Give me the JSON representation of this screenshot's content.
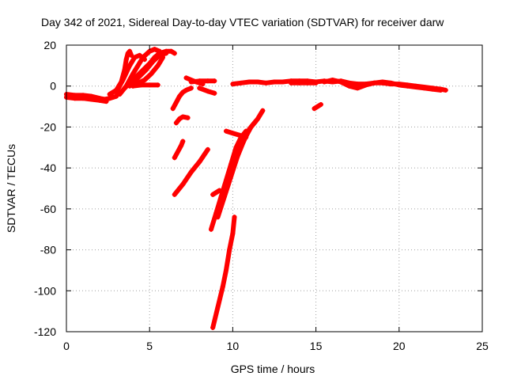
{
  "chart_data": {
    "type": "scatter",
    "title": "Day 342 of 2021, Sidereal Day-to-day VTEC variation (SDTVAR) for receiver darw",
    "xlabel": "GPS time / hours",
    "ylabel": "SDTVAR / TECUs",
    "xlim": [
      0,
      25
    ],
    "ylim": [
      -120,
      20
    ],
    "xticks": [
      "0",
      "5",
      "10",
      "15",
      "20",
      "25"
    ],
    "yticks": [
      "20",
      "0",
      "-20",
      "-40",
      "-60",
      "-80",
      "-100",
      "-120"
    ],
    "grid": true,
    "marker": "plus",
    "color": "#ff0000",
    "series": [
      {
        "points": [
          [
            0.0,
            -4
          ],
          [
            0.5,
            -4.5
          ],
          [
            1.0,
            -4.5
          ],
          [
            1.5,
            -5
          ],
          [
            2.0,
            -6
          ],
          [
            2.3,
            -6.5
          ],
          [
            2.6,
            -6
          ],
          [
            3.0,
            -5
          ]
        ]
      },
      {
        "points": [
          [
            0.0,
            -5.5
          ],
          [
            0.5,
            -6
          ],
          [
            1.0,
            -6
          ],
          [
            1.5,
            -6.5
          ],
          [
            2.0,
            -7
          ],
          [
            2.4,
            -7.5
          ]
        ]
      },
      {
        "points": [
          [
            2.6,
            -4
          ],
          [
            3.0,
            -2
          ],
          [
            3.3,
            2
          ],
          [
            3.5,
            8
          ],
          [
            3.6,
            13
          ],
          [
            3.7,
            16
          ],
          [
            3.8,
            17
          ],
          [
            3.9,
            15
          ]
        ]
      },
      {
        "points": [
          [
            3.0,
            -3
          ],
          [
            3.4,
            3
          ],
          [
            3.8,
            10
          ],
          [
            4.1,
            14
          ],
          [
            4.4,
            15
          ],
          [
            4.7,
            13
          ]
        ]
      },
      {
        "points": [
          [
            3.2,
            -4
          ],
          [
            3.6,
            0
          ],
          [
            4.0,
            6
          ],
          [
            4.3,
            10
          ],
          [
            4.6,
            14
          ],
          [
            5.0,
            17
          ],
          [
            5.3,
            18
          ],
          [
            5.6,
            17
          ]
        ]
      },
      {
        "points": [
          [
            3.5,
            -1
          ],
          [
            4.0,
            3
          ],
          [
            4.5,
            7
          ],
          [
            5.0,
            11
          ],
          [
            5.3,
            14
          ],
          [
            5.6,
            16
          ],
          [
            6.0,
            17
          ],
          [
            6.3,
            17
          ],
          [
            6.5,
            16
          ]
        ]
      },
      {
        "points": [
          [
            3.8,
            0
          ],
          [
            4.3,
            4
          ],
          [
            4.8,
            8
          ],
          [
            5.2,
            12
          ],
          [
            5.6,
            15
          ],
          [
            6.0,
            16
          ]
        ]
      },
      {
        "points": [
          [
            4.2,
            1
          ],
          [
            4.7,
            3
          ],
          [
            5.1,
            6
          ],
          [
            5.5,
            10
          ],
          [
            5.8,
            14
          ]
        ]
      },
      {
        "points": [
          [
            4.0,
            0
          ],
          [
            4.5,
            0.5
          ],
          [
            5.0,
            0.5
          ],
          [
            5.5,
            0.5
          ]
        ]
      },
      {
        "points": [
          [
            6.4,
            -11
          ],
          [
            6.6,
            -8
          ],
          [
            6.8,
            -5
          ],
          [
            7.0,
            -3
          ],
          [
            7.2,
            -2
          ],
          [
            7.5,
            -1
          ]
        ]
      },
      {
        "points": [
          [
            7.2,
            4
          ],
          [
            7.5,
            3
          ],
          [
            7.8,
            2
          ],
          [
            8.2,
            1
          ]
        ]
      },
      {
        "points": [
          [
            7.5,
            2
          ],
          [
            8.0,
            2.5
          ],
          [
            8.5,
            2.5
          ],
          [
            8.9,
            2.5
          ]
        ]
      },
      {
        "points": [
          [
            8.0,
            -1
          ],
          [
            8.5,
            -2.5
          ],
          [
            8.9,
            -3.5
          ]
        ]
      },
      {
        "points": [
          [
            6.6,
            -18
          ],
          [
            6.8,
            -16
          ],
          [
            7.0,
            -15
          ],
          [
            7.3,
            -15.5
          ]
        ]
      },
      {
        "points": [
          [
            6.5,
            -35
          ],
          [
            6.7,
            -32
          ],
          [
            6.9,
            -29
          ],
          [
            7.0,
            -27
          ]
        ]
      },
      {
        "points": [
          [
            6.5,
            -53
          ],
          [
            7.0,
            -48
          ],
          [
            7.5,
            -42
          ],
          [
            8.0,
            -37
          ],
          [
            8.5,
            -31
          ]
        ]
      },
      {
        "points": [
          [
            8.7,
            -70
          ],
          [
            9.0,
            -62
          ],
          [
            9.3,
            -54
          ],
          [
            9.6,
            -46
          ],
          [
            9.9,
            -38
          ],
          [
            10.2,
            -30
          ],
          [
            10.5,
            -25
          ],
          [
            10.8,
            -22
          ]
        ]
      },
      {
        "points": [
          [
            8.8,
            -53
          ],
          [
            9.0,
            -52
          ],
          [
            9.2,
            -51
          ]
        ]
      },
      {
        "points": [
          [
            9.1,
            -64
          ],
          [
            9.5,
            -54
          ],
          [
            9.9,
            -44
          ],
          [
            10.3,
            -34
          ],
          [
            10.7,
            -26
          ],
          [
            11.1,
            -20
          ],
          [
            11.5,
            -16
          ],
          [
            11.8,
            -12
          ]
        ]
      },
      {
        "points": [
          [
            9.4,
            -55
          ],
          [
            9.8,
            -45
          ],
          [
            10.2,
            -36
          ],
          [
            10.6,
            -28
          ],
          [
            11.0,
            -21
          ],
          [
            11.4,
            -17
          ]
        ]
      },
      {
        "points": [
          [
            9.6,
            -22
          ],
          [
            10.0,
            -23
          ],
          [
            10.4,
            -24
          ],
          [
            10.8,
            -25
          ]
        ]
      },
      {
        "points": [
          [
            8.8,
            -118
          ],
          [
            9.1,
            -108
          ],
          [
            9.4,
            -98
          ],
          [
            9.6,
            -90
          ],
          [
            9.8,
            -80
          ],
          [
            10.0,
            -72
          ],
          [
            10.1,
            -64
          ]
        ]
      },
      {
        "points": [
          [
            10.0,
            1
          ],
          [
            10.5,
            1.5
          ],
          [
            11.0,
            2
          ],
          [
            11.5,
            2
          ],
          [
            12.0,
            1.5
          ],
          [
            12.5,
            2
          ],
          [
            13.0,
            2
          ],
          [
            13.5,
            2.5
          ],
          [
            14.0,
            2.5
          ],
          [
            14.5,
            2.5
          ],
          [
            15.0,
            2
          ],
          [
            15.5,
            2.5
          ],
          [
            16.0,
            2
          ],
          [
            16.5,
            2.5
          ],
          [
            17.0,
            1.5
          ],
          [
            17.5,
            1
          ],
          [
            18.0,
            1
          ],
          [
            18.5,
            1.5
          ],
          [
            19.0,
            1.5
          ],
          [
            19.5,
            1
          ],
          [
            20.0,
            1
          ],
          [
            20.5,
            0.5
          ],
          [
            21.0,
            0
          ],
          [
            21.5,
            -0.5
          ],
          [
            22.0,
            -1
          ],
          [
            22.5,
            -1.5
          ],
          [
            22.8,
            -2
          ]
        ]
      },
      {
        "points": [
          [
            15.5,
            2
          ],
          [
            16.0,
            3
          ],
          [
            16.5,
            2
          ],
          [
            17.0,
            0
          ],
          [
            17.5,
            -1
          ],
          [
            18.0,
            0.5
          ],
          [
            18.5,
            1.5
          ],
          [
            19.0,
            2
          ],
          [
            19.5,
            1.5
          ],
          [
            20.0,
            0.5
          ],
          [
            20.5,
            0
          ],
          [
            21.0,
            -0.5
          ],
          [
            21.5,
            -1
          ],
          [
            22.0,
            -1.5
          ],
          [
            22.5,
            -2
          ]
        ]
      },
      {
        "points": [
          [
            13.5,
            1.5
          ],
          [
            14.0,
            1.5
          ],
          [
            14.5,
            1.5
          ],
          [
            15.0,
            1.5
          ]
        ]
      },
      {
        "points": [
          [
            14.9,
            -11
          ],
          [
            15.1,
            -10
          ],
          [
            15.3,
            -9
          ]
        ]
      }
    ]
  }
}
